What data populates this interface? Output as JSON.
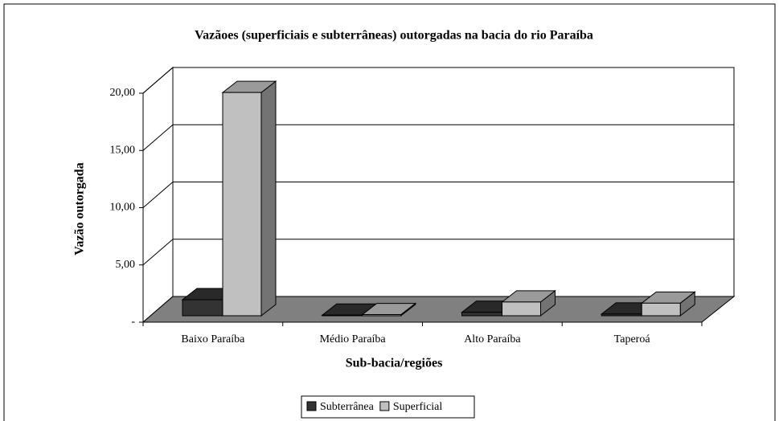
{
  "chart_data": {
    "type": "bar3d",
    "title": "Vazãoes (superficiais e subterrâneas) outorgadas na bacia do rio Paraíba",
    "x_label": "Sub-bacia/regiões",
    "y_label": "Vazão outorgada",
    "categories": [
      "Baixo Paraíba",
      "Médio Paraíba",
      "Alto Paraíba",
      "Taperoá"
    ],
    "series": [
      {
        "name": "Subterrânea",
        "color": "#333333",
        "values": [
          1.4,
          0.05,
          0.3,
          0.15
        ]
      },
      {
        "name": "Superficial",
        "color": "#c0c0c0",
        "values": [
          19.5,
          0.1,
          1.2,
          1.1
        ]
      }
    ],
    "ylim": [
      0,
      20
    ],
    "yticks": [
      {
        "value": 0,
        "label": "-"
      },
      {
        "value": 5,
        "label": "5,00"
      },
      {
        "value": 10,
        "label": "10,00"
      },
      {
        "value": 15,
        "label": "15,00"
      },
      {
        "value": 20,
        "label": "20,00"
      }
    ],
    "grid": true,
    "legend": "bottom"
  }
}
